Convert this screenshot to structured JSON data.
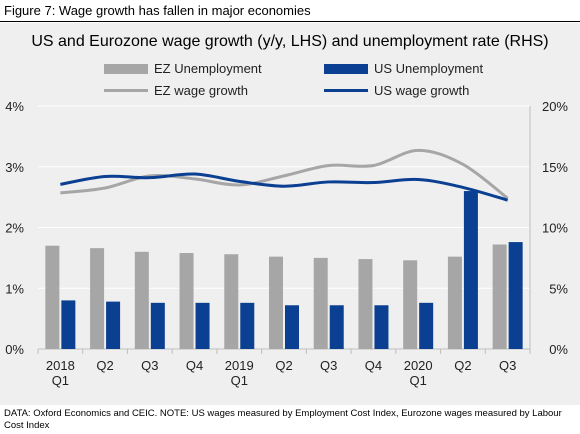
{
  "figure_title": "Figure 7: Wage growth has fallen in major economies",
  "source_note": "DATA: Oxford Economics and CEIC. NOTE: US wages measured by Employment Cost Index, Eurozone wages measured by Labour Cost Index",
  "colors": {
    "ez_unemployment": "#a6a6a6",
    "us_unemployment": "#0b3f91",
    "ez_wage": "#a6a6a6",
    "us_wage": "#0b3f91",
    "panel": "#efefef"
  },
  "chart_data": {
    "type": "bar",
    "title": "US and Eurozone wage growth (y/y, LHS) and unemployment rate (RHS)",
    "categories": [
      [
        "2018",
        "Q1"
      ],
      [
        "Q2"
      ],
      [
        "Q3"
      ],
      [
        "Q4"
      ],
      [
        "2019",
        "Q1"
      ],
      [
        "Q2"
      ],
      [
        "Q3"
      ],
      [
        "Q4"
      ],
      [
        "2020",
        "Q1"
      ],
      [
        "Q2"
      ],
      [
        "Q3"
      ]
    ],
    "left_axis": {
      "ticks": [
        "0%",
        "1%",
        "2%",
        "3%",
        "4%"
      ],
      "range": [
        0,
        4
      ]
    },
    "right_axis": {
      "ticks": [
        "0%",
        "5%",
        "10%",
        "15%",
        "20%"
      ],
      "range": [
        0,
        20
      ]
    },
    "legend": [
      {
        "name": "EZ Unemployment",
        "kind": "bar"
      },
      {
        "name": "US Unemployment",
        "kind": "bar"
      },
      {
        "name": "EZ wage growth",
        "kind": "line"
      },
      {
        "name": "US wage growth",
        "kind": "line"
      }
    ],
    "series": [
      {
        "name": "EZ Unemployment",
        "kind": "bar",
        "axis": "right",
        "values": [
          8.5,
          8.3,
          8.0,
          7.9,
          7.8,
          7.6,
          7.5,
          7.4,
          7.3,
          7.6,
          8.6
        ]
      },
      {
        "name": "US Unemployment",
        "kind": "bar",
        "axis": "right",
        "values": [
          4.0,
          3.9,
          3.8,
          3.8,
          3.8,
          3.6,
          3.6,
          3.6,
          3.8,
          13.0,
          8.8
        ]
      },
      {
        "name": "EZ wage growth",
        "kind": "line",
        "axis": "left",
        "values": [
          2.57,
          2.65,
          2.85,
          2.8,
          2.7,
          2.85,
          3.02,
          3.02,
          3.27,
          3.04,
          2.48
        ]
      },
      {
        "name": "US wage growth",
        "kind": "line",
        "axis": "left",
        "values": [
          2.71,
          2.84,
          2.82,
          2.88,
          2.76,
          2.68,
          2.75,
          2.74,
          2.79,
          2.66,
          2.45
        ]
      }
    ]
  }
}
